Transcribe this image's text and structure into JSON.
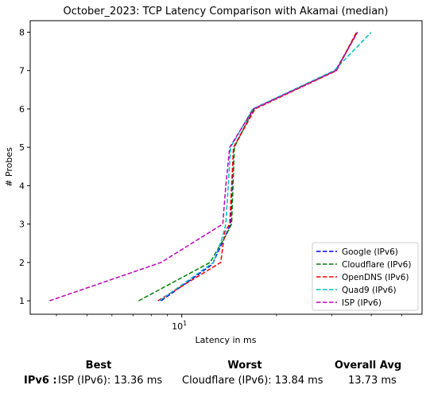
{
  "chart_data": {
    "type": "line",
    "title": "October_2023: TCP Latency Comparison with Akamai (median)",
    "xlabel": "Latency in ms",
    "ylabel": "# Probes",
    "xscale": "log",
    "xlim": [
      3.3,
      58
    ],
    "ylim": [
      0.65,
      8.3
    ],
    "x_ticks": [
      {
        "value": 10,
        "label": "10^1"
      }
    ],
    "y_ticks": [
      1,
      2,
      3,
      4,
      5,
      6,
      7,
      8
    ],
    "grid": false,
    "legend_position": "lower-right",
    "line_style": "dashed",
    "series": [
      {
        "name": "Google (IPv6)",
        "color": "#0000ff",
        "points": [
          [
            8.6,
            1
          ],
          [
            12.5,
            1.95
          ],
          [
            13.6,
            2.6
          ],
          [
            14.3,
            3.0
          ],
          [
            14.6,
            5.0
          ],
          [
            17.0,
            6.0
          ],
          [
            31.0,
            7.0
          ],
          [
            36.0,
            8.0
          ]
        ]
      },
      {
        "name": "Cloudflare (IPv6)",
        "color": "#008000",
        "points": [
          [
            7.3,
            1
          ],
          [
            12.3,
            2.0
          ],
          [
            13.8,
            2.7
          ],
          [
            14.4,
            3.0
          ],
          [
            14.7,
            5.0
          ],
          [
            16.9,
            6.0
          ],
          [
            30.8,
            7.0
          ],
          [
            36.1,
            8.0
          ]
        ]
      },
      {
        "name": "OpenDNS (IPv6)",
        "color": "#ff0000",
        "points": [
          [
            8.4,
            1
          ],
          [
            13.3,
            2.0
          ],
          [
            13.7,
            2.8
          ],
          [
            14.2,
            3.0
          ],
          [
            14.6,
            5.0
          ],
          [
            17.1,
            6.0
          ],
          [
            31.0,
            7.0
          ],
          [
            35.9,
            8.0
          ]
        ]
      },
      {
        "name": "Quad9 (IPv6)",
        "color": "#00bfbf",
        "points": [
          [
            8.5,
            1
          ],
          [
            12.6,
            2.0
          ],
          [
            13.4,
            2.6
          ],
          [
            13.8,
            3.0
          ],
          [
            14.3,
            5.0
          ],
          [
            16.8,
            6.0
          ],
          [
            30.5,
            7.0
          ],
          [
            40.0,
            8.0
          ]
        ]
      },
      {
        "name": "ISP (IPv6)",
        "color": "#bf00bf",
        "points": [
          [
            3.8,
            1
          ],
          [
            8.6,
            2.0
          ],
          [
            13.5,
            3.0
          ],
          [
            13.8,
            4.0
          ],
          [
            14.2,
            5.0
          ],
          [
            16.9,
            6.0
          ],
          [
            30.9,
            7.0
          ],
          [
            36.2,
            8.0
          ]
        ]
      }
    ]
  },
  "summary": {
    "headers": {
      "best": "Best",
      "worst": "Worst",
      "avg": "Overall Avg"
    },
    "row_label": "IPv6 :",
    "best": "ISP (IPv6): 13.36 ms",
    "worst": "Cloudflare (IPv6): 13.84 ms",
    "avg": "13.73 ms"
  }
}
